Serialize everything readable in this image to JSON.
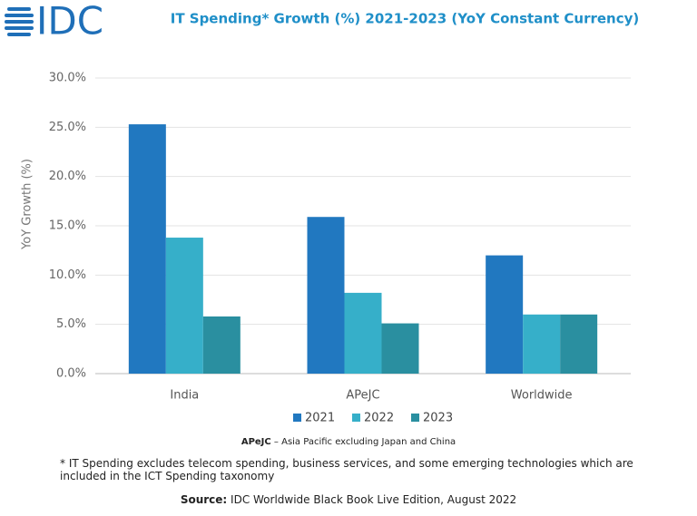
{
  "logo": "IDC",
  "chart_data": {
    "type": "bar",
    "title": "IT Spending* Growth (%) 2021-2023  (YoY Constant Currency)",
    "y_label": "YoY Growth (%)",
    "categories": [
      "India",
      "APeJC",
      "Worldwide"
    ],
    "series": [
      {
        "name": "2021",
        "color": "#2178c0",
        "values": [
          25.3,
          15.9,
          12.0
        ]
      },
      {
        "name": "2022",
        "color": "#36afc9",
        "values": [
          13.8,
          8.2,
          6.0
        ]
      },
      {
        "name": "2023",
        "color": "#2a8fa0",
        "values": [
          5.8,
          5.1,
          6.0
        ]
      }
    ],
    "ylim": [
      0,
      30
    ],
    "yticks": [
      {
        "value": 0,
        "label": "0.0%"
      },
      {
        "value": 5,
        "label": "5.0%"
      },
      {
        "value": 10,
        "label": "10.0%"
      },
      {
        "value": 15,
        "label": "15.0%"
      },
      {
        "value": 20,
        "label": "20.0%"
      },
      {
        "value": 25,
        "label": "25.0%"
      },
      {
        "value": 30,
        "label": "30.0%"
      }
    ],
    "grid": true
  },
  "notes": {
    "abbr": "APeJC",
    "abbr_text": " – Asia Pacific excluding Japan and China",
    "footnote": "* IT Spending excludes telecom spending, business services, and some emerging technologies which are included in the ICT Spending taxonomy",
    "source_label": "Source:",
    "source_text": " IDC Worldwide Black Book Live Edition, August 2022"
  }
}
